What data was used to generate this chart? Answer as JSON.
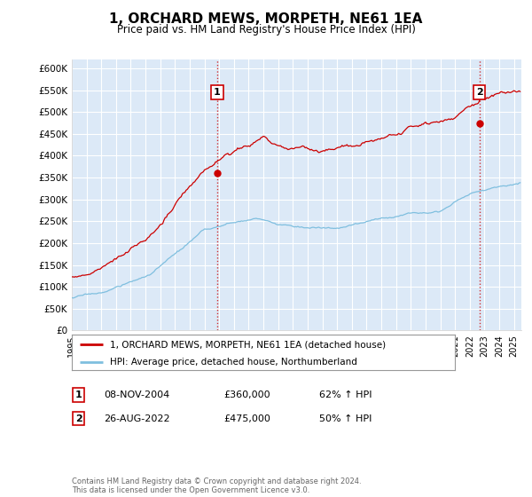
{
  "title": "1, ORCHARD MEWS, MORPETH, NE61 1EA",
  "subtitle": "Price paid vs. HM Land Registry's House Price Index (HPI)",
  "ylim": [
    0,
    620000
  ],
  "xlim_start": 1995.0,
  "xlim_end": 2025.5,
  "plot_bg_color": "#dce9f7",
  "grid_color": "#ffffff",
  "hpi_color": "#7fbfdf",
  "price_color": "#cc0000",
  "sale1_x": 2004.86,
  "sale1_y": 360000,
  "sale2_x": 2022.65,
  "sale2_y": 475000,
  "legend_label_price": "1, ORCHARD MEWS, MORPETH, NE61 1EA (detached house)",
  "legend_label_hpi": "HPI: Average price, detached house, Northumberland",
  "note1_label": "1",
  "note1_date": "08-NOV-2004",
  "note1_price": "£360,000",
  "note1_hpi": "62% ↑ HPI",
  "note2_label": "2",
  "note2_date": "26-AUG-2022",
  "note2_price": "£475,000",
  "note2_hpi": "50% ↑ HPI",
  "footer": "Contains HM Land Registry data © Crown copyright and database right 2024.\nThis data is licensed under the Open Government Licence v3.0."
}
